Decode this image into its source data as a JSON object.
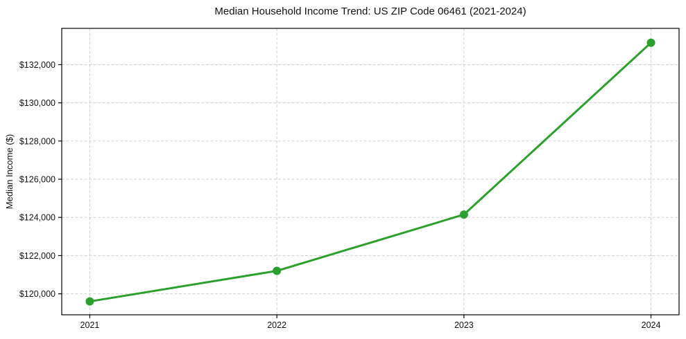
{
  "chart_data": {
    "type": "line",
    "title": "Median Household Income Trend: US ZIP Code 06461 (2021-2024)",
    "xlabel": "",
    "ylabel": "Median Income ($)",
    "categories": [
      "2021",
      "2022",
      "2023",
      "2024"
    ],
    "series": [
      {
        "name": "Median Household Income",
        "values": [
          119600,
          121200,
          124150,
          133150
        ],
        "color": "#2ca02c"
      }
    ],
    "y_ticks": [
      {
        "value": 120000,
        "label": "$120,000"
      },
      {
        "value": 122000,
        "label": "$122,000"
      },
      {
        "value": 124000,
        "label": "$124,000"
      },
      {
        "value": 126000,
        "label": "$126,000"
      },
      {
        "value": 128000,
        "label": "$128,000"
      },
      {
        "value": 130000,
        "label": "$130,000"
      },
      {
        "value": 132000,
        "label": "$132,000"
      }
    ],
    "ylim": [
      118900,
      133900
    ],
    "xlim": [
      -0.15,
      3.15
    ],
    "grid": "dashed",
    "grid_color": "#d0d0d0",
    "axis_color": "#000000",
    "text_color": "#111111",
    "background": "#ffffff",
    "legend": "none"
  }
}
